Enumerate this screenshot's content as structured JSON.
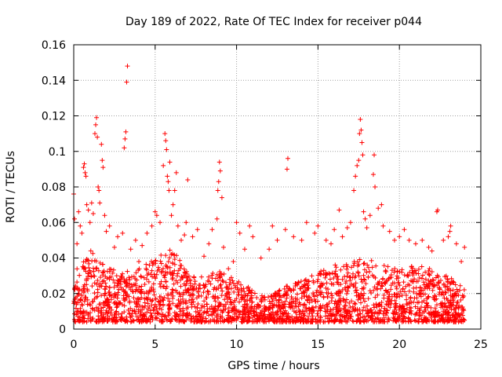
{
  "chart_data": {
    "type": "scatter",
    "title": "Day 189 of 2022, Rate Of TEC Index for receiver p044",
    "xlabel": "GPS time / hours",
    "ylabel": "ROTI / TECUs",
    "xlim": [
      0,
      25
    ],
    "ylim": [
      0,
      0.16
    ],
    "xticks": [
      0,
      5,
      10,
      15,
      20,
      25
    ],
    "xtick_labels": [
      "0",
      "5",
      "10",
      "15",
      "20",
      "25"
    ],
    "yticks": [
      0,
      0.02,
      0.04,
      0.06,
      0.08,
      0.1,
      0.12,
      0.14,
      0.16
    ],
    "ytick_labels": [
      "0",
      "0.02",
      "0.04",
      "0.06",
      "0.08",
      "0.1",
      "0.12",
      "0.14",
      "0.16"
    ],
    "grid": true,
    "marker": "+",
    "series": [
      {
        "name": "ROTI",
        "color": "#ff0000",
        "points": [
          [
            0.0,
            0.076
          ],
          [
            0.05,
            0.062
          ],
          [
            0.2,
            0.048
          ],
          [
            0.3,
            0.066
          ],
          [
            0.4,
            0.058
          ],
          [
            0.5,
            0.054
          ],
          [
            0.6,
            0.091
          ],
          [
            0.65,
            0.093
          ],
          [
            0.7,
            0.088
          ],
          [
            0.75,
            0.086
          ],
          [
            0.8,
            0.07
          ],
          [
            0.9,
            0.067
          ],
          [
            1.0,
            0.06
          ],
          [
            1.1,
            0.071
          ],
          [
            1.2,
            0.065
          ],
          [
            1.3,
            0.11
          ],
          [
            1.35,
            0.115
          ],
          [
            1.4,
            0.119
          ],
          [
            1.45,
            0.108
          ],
          [
            1.5,
            0.08
          ],
          [
            1.55,
            0.078
          ],
          [
            1.6,
            0.071
          ],
          [
            1.7,
            0.104
          ],
          [
            1.75,
            0.095
          ],
          [
            1.8,
            0.091
          ],
          [
            1.9,
            0.064
          ],
          [
            2.0,
            0.055
          ],
          [
            2.2,
            0.058
          ],
          [
            2.5,
            0.046
          ],
          [
            2.7,
            0.052
          ],
          [
            3.0,
            0.054
          ],
          [
            3.1,
            0.102
          ],
          [
            3.15,
            0.107
          ],
          [
            3.2,
            0.111
          ],
          [
            3.25,
            0.139
          ],
          [
            3.3,
            0.148
          ],
          [
            3.5,
            0.045
          ],
          [
            3.8,
            0.05
          ],
          [
            4.0,
            0.038
          ],
          [
            4.2,
            0.047
          ],
          [
            4.5,
            0.054
          ],
          [
            4.8,
            0.058
          ],
          [
            5.0,
            0.066
          ],
          [
            5.1,
            0.064
          ],
          [
            5.3,
            0.06
          ],
          [
            5.5,
            0.092
          ],
          [
            5.6,
            0.11
          ],
          [
            5.65,
            0.106
          ],
          [
            5.7,
            0.101
          ],
          [
            5.75,
            0.086
          ],
          [
            5.8,
            0.083
          ],
          [
            5.85,
            0.078
          ],
          [
            5.9,
            0.094
          ],
          [
            6.0,
            0.064
          ],
          [
            6.1,
            0.07
          ],
          [
            6.2,
            0.078
          ],
          [
            6.3,
            0.088
          ],
          [
            6.4,
            0.058
          ],
          [
            6.6,
            0.05
          ],
          [
            6.8,
            0.053
          ],
          [
            6.9,
            0.06
          ],
          [
            7.0,
            0.084
          ],
          [
            7.3,
            0.052
          ],
          [
            7.6,
            0.056
          ],
          [
            8.0,
            0.041
          ],
          [
            8.3,
            0.048
          ],
          [
            8.5,
            0.056
          ],
          [
            8.8,
            0.062
          ],
          [
            8.85,
            0.078
          ],
          [
            8.9,
            0.083
          ],
          [
            8.95,
            0.094
          ],
          [
            9.0,
            0.089
          ],
          [
            9.1,
            0.074
          ],
          [
            9.2,
            0.046
          ],
          [
            9.5,
            0.034
          ],
          [
            9.8,
            0.038
          ],
          [
            10.0,
            0.06
          ],
          [
            10.2,
            0.054
          ],
          [
            10.5,
            0.045
          ],
          [
            10.8,
            0.058
          ],
          [
            11.0,
            0.052
          ],
          [
            11.5,
            0.04
          ],
          [
            12.0,
            0.045
          ],
          [
            12.2,
            0.058
          ],
          [
            12.5,
            0.05
          ],
          [
            13.0,
            0.056
          ],
          [
            13.1,
            0.09
          ],
          [
            13.15,
            0.096
          ],
          [
            13.5,
            0.052
          ],
          [
            14.0,
            0.05
          ],
          [
            14.3,
            0.06
          ],
          [
            14.8,
            0.054
          ],
          [
            15.0,
            0.058
          ],
          [
            15.5,
            0.05
          ],
          [
            15.8,
            0.048
          ],
          [
            16.0,
            0.056
          ],
          [
            16.3,
            0.067
          ],
          [
            16.5,
            0.052
          ],
          [
            16.8,
            0.057
          ],
          [
            17.0,
            0.06
          ],
          [
            17.2,
            0.078
          ],
          [
            17.3,
            0.086
          ],
          [
            17.4,
            0.092
          ],
          [
            17.5,
            0.095
          ],
          [
            17.55,
            0.11
          ],
          [
            17.6,
            0.118
          ],
          [
            17.65,
            0.112
          ],
          [
            17.7,
            0.105
          ],
          [
            17.75,
            0.098
          ],
          [
            17.8,
            0.066
          ],
          [
            17.9,
            0.062
          ],
          [
            18.0,
            0.057
          ],
          [
            18.2,
            0.064
          ],
          [
            18.4,
            0.087
          ],
          [
            18.45,
            0.098
          ],
          [
            18.5,
            0.08
          ],
          [
            18.7,
            0.068
          ],
          [
            18.9,
            0.07
          ],
          [
            19.0,
            0.058
          ],
          [
            19.4,
            0.055
          ],
          [
            19.7,
            0.05
          ],
          [
            20.0,
            0.052
          ],
          [
            20.3,
            0.056
          ],
          [
            20.6,
            0.05
          ],
          [
            21.0,
            0.048
          ],
          [
            21.4,
            0.05
          ],
          [
            21.8,
            0.046
          ],
          [
            22.0,
            0.044
          ],
          [
            22.3,
            0.066
          ],
          [
            22.35,
            0.067
          ],
          [
            22.7,
            0.05
          ],
          [
            23.0,
            0.052
          ],
          [
            23.1,
            0.055
          ],
          [
            23.15,
            0.058
          ],
          [
            23.5,
            0.048
          ],
          [
            23.8,
            0.038
          ],
          [
            24.0,
            0.046
          ]
        ],
        "band": {
          "x_range": [
            0,
            24
          ],
          "envelope_hours": [
            0,
            1,
            2,
            3,
            4,
            5,
            6,
            7,
            8,
            9,
            10,
            11,
            12,
            13,
            14,
            15,
            16,
            17,
            18,
            19,
            20,
            21,
            22,
            23,
            24
          ],
          "envelope_max": [
            0.04,
            0.045,
            0.036,
            0.032,
            0.034,
            0.04,
            0.046,
            0.032,
            0.03,
            0.034,
            0.028,
            0.022,
            0.018,
            0.024,
            0.028,
            0.032,
            0.036,
            0.038,
            0.04,
            0.036,
            0.034,
            0.036,
            0.034,
            0.03,
            0.024
          ],
          "floor": 0.004
        }
      }
    ]
  }
}
